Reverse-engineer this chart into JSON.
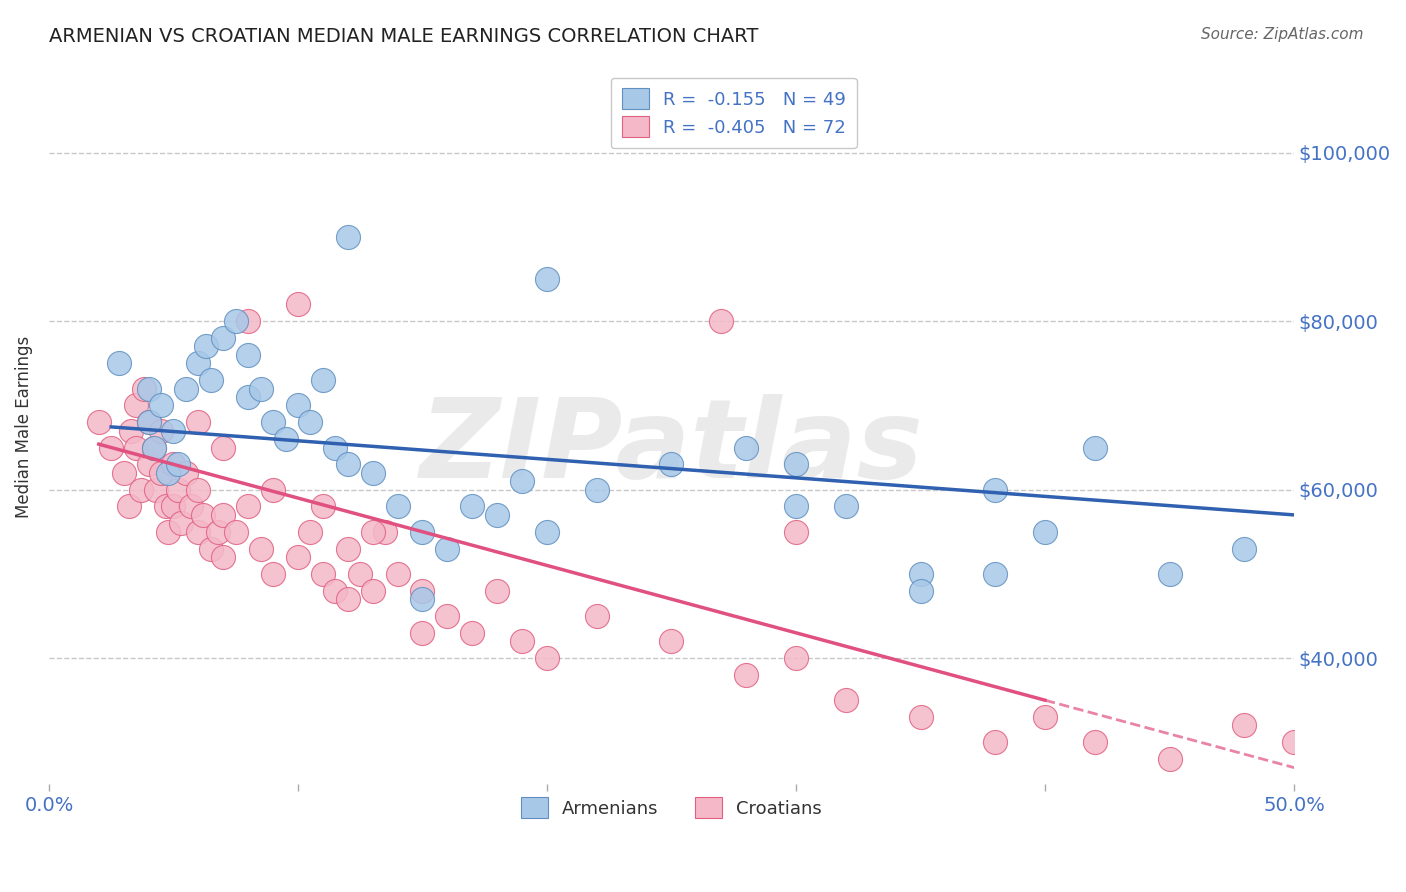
{
  "title": "ARMENIAN VS CROATIAN MEDIAN MALE EARNINGS CORRELATION CHART",
  "source": "Source: ZipAtlas.com",
  "ylabel": "Median Male Earnings",
  "xlim": [
    0.0,
    0.5
  ],
  "ylim": [
    25000,
    110000
  ],
  "ytick_values": [
    40000,
    60000,
    80000,
    100000
  ],
  "ytick_labels": [
    "$40,000",
    "$60,000",
    "$80,000",
    "$100,000"
  ],
  "legend_blue_r": "-0.155",
  "legend_blue_n": "49",
  "legend_pink_r": "-0.405",
  "legend_pink_n": "72",
  "legend_label_blue": "Armenians",
  "legend_label_pink": "Croatians",
  "blue_color": "#A8C8E8",
  "pink_color": "#F4B8C8",
  "blue_edge_color": "#6090C0",
  "pink_edge_color": "#E06080",
  "blue_line_color": "#3060B0",
  "pink_line_color": "#E05080",
  "title_color": "#222222",
  "axis_label_color": "#333333",
  "tick_label_color": "#4472C4",
  "watermark_color": "#CCCCCC",
  "watermark_text": "ZIPatlas",
  "grid_color": "#C8C8C8",
  "background_color": "#FFFFFF",
  "blue_x": [
    0.028,
    0.04,
    0.04,
    0.042,
    0.045,
    0.048,
    0.05,
    0.052,
    0.055,
    0.06,
    0.063,
    0.065,
    0.07,
    0.075,
    0.08,
    0.08,
    0.085,
    0.09,
    0.095,
    0.1,
    0.105,
    0.11,
    0.115,
    0.12,
    0.13,
    0.14,
    0.15,
    0.16,
    0.17,
    0.18,
    0.19,
    0.2,
    0.22,
    0.25,
    0.28,
    0.3,
    0.32,
    0.35,
    0.38,
    0.4,
    0.42,
    0.45,
    0.48,
    0.3,
    0.35,
    0.38,
    0.12,
    0.2,
    0.15
  ],
  "blue_y": [
    75000,
    72000,
    68000,
    65000,
    70000,
    62000,
    67000,
    63000,
    72000,
    75000,
    77000,
    73000,
    78000,
    80000,
    76000,
    71000,
    72000,
    68000,
    66000,
    70000,
    68000,
    73000,
    65000,
    63000,
    62000,
    58000,
    55000,
    53000,
    58000,
    57000,
    61000,
    55000,
    60000,
    63000,
    65000,
    63000,
    58000,
    50000,
    60000,
    55000,
    65000,
    50000,
    53000,
    58000,
    48000,
    50000,
    90000,
    85000,
    47000
  ],
  "pink_x": [
    0.02,
    0.025,
    0.03,
    0.032,
    0.033,
    0.035,
    0.035,
    0.037,
    0.038,
    0.04,
    0.04,
    0.042,
    0.043,
    0.045,
    0.045,
    0.047,
    0.048,
    0.05,
    0.05,
    0.052,
    0.053,
    0.055,
    0.057,
    0.06,
    0.06,
    0.062,
    0.065,
    0.068,
    0.07,
    0.07,
    0.075,
    0.08,
    0.085,
    0.09,
    0.1,
    0.105,
    0.11,
    0.115,
    0.12,
    0.125,
    0.13,
    0.135,
    0.14,
    0.15,
    0.16,
    0.17,
    0.18,
    0.19,
    0.2,
    0.22,
    0.25,
    0.28,
    0.3,
    0.32,
    0.35,
    0.38,
    0.4,
    0.42,
    0.45,
    0.48,
    0.5,
    0.27,
    0.3,
    0.12,
    0.15,
    0.08,
    0.1,
    0.06,
    0.07,
    0.09,
    0.11,
    0.13
  ],
  "pink_y": [
    68000,
    65000,
    62000,
    58000,
    67000,
    65000,
    70000,
    60000,
    72000,
    68000,
    63000,
    65000,
    60000,
    67000,
    62000,
    58000,
    55000,
    63000,
    58000,
    60000,
    56000,
    62000,
    58000,
    60000,
    55000,
    57000,
    53000,
    55000,
    52000,
    57000,
    55000,
    58000,
    53000,
    50000,
    52000,
    55000,
    50000,
    48000,
    53000,
    50000,
    48000,
    55000,
    50000,
    48000,
    45000,
    43000,
    48000,
    42000,
    40000,
    45000,
    42000,
    38000,
    40000,
    35000,
    33000,
    30000,
    33000,
    30000,
    28000,
    32000,
    30000,
    80000,
    55000,
    47000,
    43000,
    80000,
    82000,
    68000,
    65000,
    60000,
    58000,
    55000
  ]
}
